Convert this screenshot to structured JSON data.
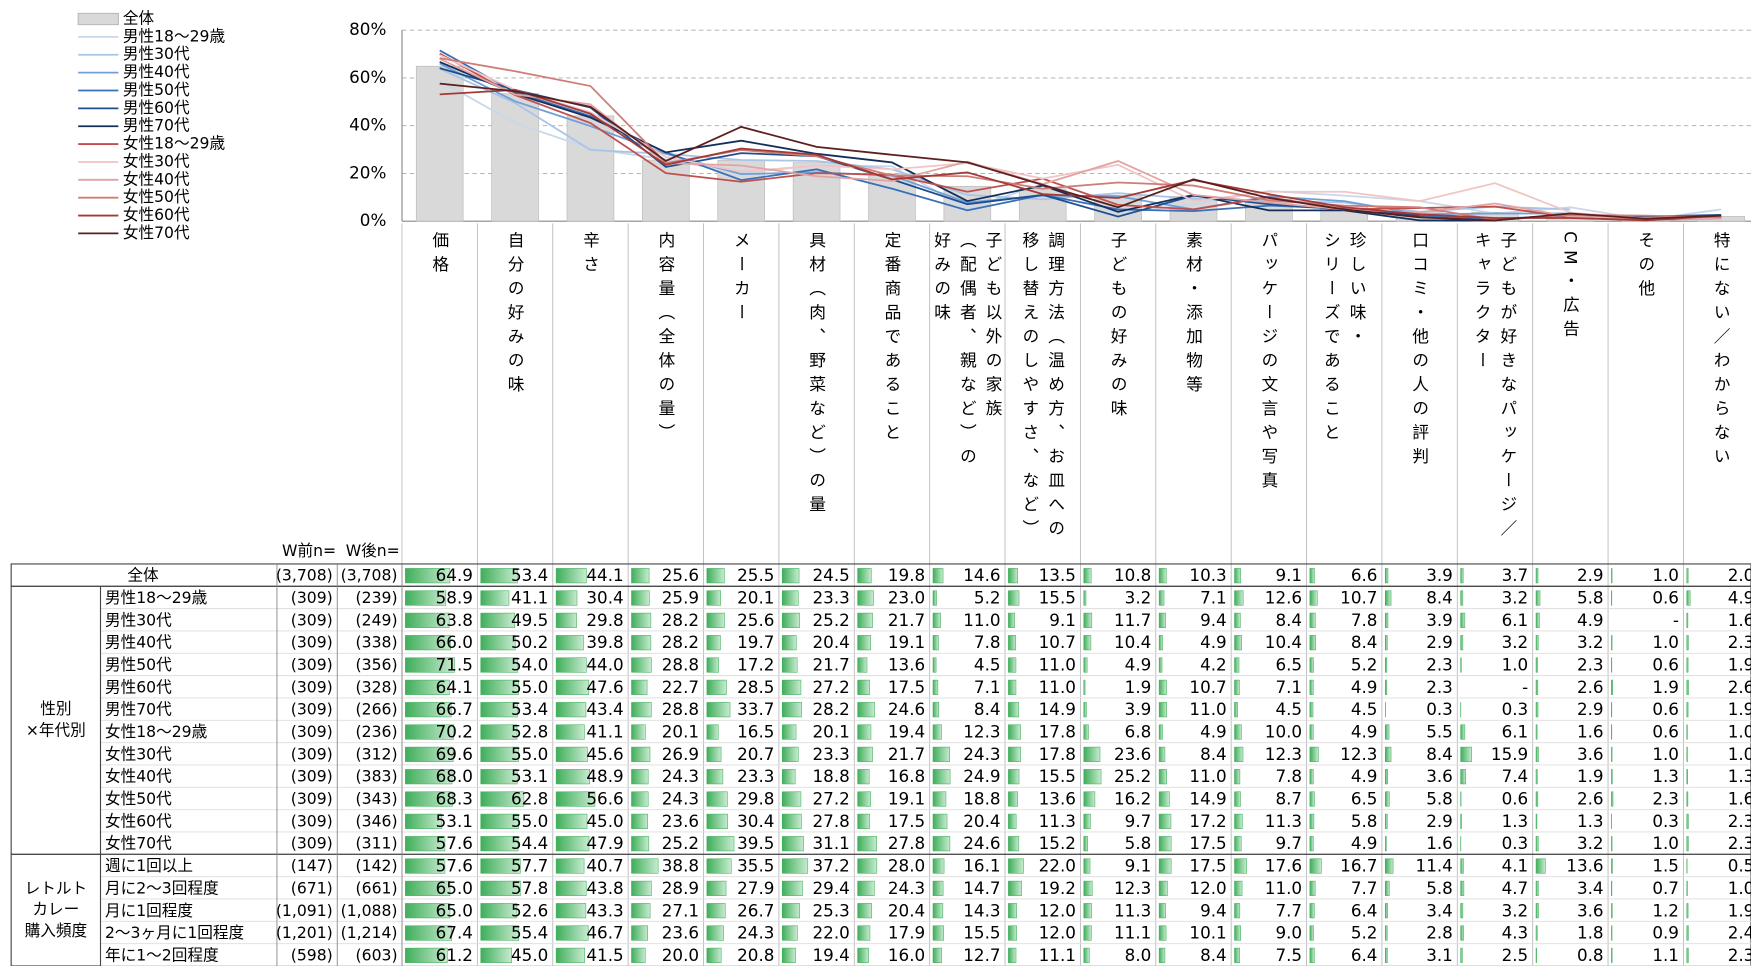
{
  "chart": {
    "type": "bar_line",
    "ylim": [
      0,
      80
    ],
    "yticks": [
      {
        "value": 0,
        "label": "0%"
      },
      {
        "value": 20,
        "label": "20%"
      },
      {
        "value": 40,
        "label": "40%"
      },
      {
        "value": 60,
        "label": "60%"
      },
      {
        "value": 80,
        "label": "80%"
      }
    ],
    "grid": true,
    "bar_color": "#d9d9d9",
    "line_colors": [
      "#c9d7ea",
      "#a9c4e4",
      "#6f9fd8",
      "#3b6fb6",
      "#1f4e8c",
      "#14305a",
      "#c0504d",
      "#f2c4c4",
      "#e3a3a3",
      "#cf7d78",
      "#a33a36",
      "#5c1f1f"
    ]
  },
  "table": {
    "n_headers": [
      "W前n=",
      "W後n="
    ],
    "columns": [
      [
        "価格"
      ],
      [
        "自分の好みの味"
      ],
      [
        "辛さ"
      ],
      [
        "内容量（全体の量）"
      ],
      [
        "メーカー"
      ],
      [
        "具材（肉、野菜など）の量"
      ],
      [
        "定番商品であること"
      ],
      [
        "子ども以外の家族",
        "（配偶者、親など）の",
        "好みの味"
      ],
      [
        "調理方法（温め方、お皿への",
        "移し替えのしやすさ、など）"
      ],
      [
        "子どもの好みの味"
      ],
      [
        "素材・添加物等"
      ],
      [
        "パッケージの文言や写真"
      ],
      [
        "珍しい味・",
        "シリーズであること"
      ],
      [
        "口コミ・他の人の評判"
      ],
      [
        "子どもが好きなパッケージ／",
        "キャラクター"
      ],
      [
        "CM・広告"
      ],
      [
        "その他"
      ],
      [
        "特にない／わからない"
      ]
    ],
    "total": {
      "label": "全体",
      "n": [
        "(3,708)",
        "(3,708)"
      ],
      "values": [
        "64.9",
        "53.4",
        "44.1",
        "25.6",
        "25.5",
        "24.5",
        "19.8",
        "14.6",
        "13.5",
        "10.8",
        "10.3",
        "9.1",
        "6.6",
        "3.9",
        "3.7",
        "2.9",
        "1.0",
        "2.0"
      ]
    },
    "groups": [
      {
        "label": [
          "性別",
          "×年代別"
        ],
        "rows": [
          {
            "label": "男性18～29歳",
            "n": [
              "(309)",
              "(239)"
            ],
            "values": [
              "58.9",
              "41.1",
              "30.4",
              "25.9",
              "20.1",
              "23.3",
              "23.0",
              "5.2",
              "15.5",
              "3.2",
              "7.1",
              "12.6",
              "10.7",
              "8.4",
              "3.2",
              "5.8",
              "0.6",
              "4.9"
            ]
          },
          {
            "label": "男性30代",
            "n": [
              "(309)",
              "(249)"
            ],
            "values": [
              "63.8",
              "49.5",
              "29.8",
              "28.2",
              "25.6",
              "25.2",
              "21.7",
              "11.0",
              "9.1",
              "11.7",
              "9.4",
              "8.4",
              "7.8",
              "3.9",
              "6.1",
              "4.9",
              "-",
              "1.6"
            ]
          },
          {
            "label": "男性40代",
            "n": [
              "(309)",
              "(338)"
            ],
            "values": [
              "66.0",
              "50.2",
              "39.8",
              "28.2",
              "19.7",
              "20.4",
              "19.1",
              "7.8",
              "10.7",
              "10.4",
              "4.9",
              "10.4",
              "8.4",
              "2.9",
              "3.2",
              "3.2",
              "1.0",
              "2.3"
            ]
          },
          {
            "label": "男性50代",
            "n": [
              "(309)",
              "(356)"
            ],
            "values": [
              "71.5",
              "54.0",
              "44.0",
              "28.8",
              "17.2",
              "21.7",
              "13.6",
              "4.5",
              "11.0",
              "4.9",
              "4.2",
              "6.5",
              "5.2",
              "2.3",
              "1.0",
              "2.3",
              "0.6",
              "1.9"
            ]
          },
          {
            "label": "男性60代",
            "n": [
              "(309)",
              "(328)"
            ],
            "values": [
              "64.1",
              "55.0",
              "47.6",
              "22.7",
              "28.5",
              "27.2",
              "17.5",
              "7.1",
              "11.0",
              "1.9",
              "10.7",
              "7.1",
              "4.9",
              "2.3",
              "-",
              "2.6",
              "1.9",
              "2.6"
            ]
          },
          {
            "label": "男性70代",
            "n": [
              "(309)",
              "(266)"
            ],
            "values": [
              "66.7",
              "53.4",
              "43.4",
              "28.8",
              "33.7",
              "28.2",
              "24.6",
              "8.4",
              "14.9",
              "3.9",
              "11.0",
              "4.5",
              "4.5",
              "0.3",
              "0.3",
              "2.9",
              "0.6",
              "1.9"
            ]
          },
          {
            "label": "女性18～29歳",
            "n": [
              "(309)",
              "(236)"
            ],
            "values": [
              "70.2",
              "52.8",
              "41.1",
              "20.1",
              "16.5",
              "20.1",
              "19.4",
              "12.3",
              "17.8",
              "6.8",
              "4.9",
              "10.0",
              "4.9",
              "5.5",
              "6.1",
              "1.6",
              "0.6",
              "1.0"
            ]
          },
          {
            "label": "女性30代",
            "n": [
              "(309)",
              "(312)"
            ],
            "values": [
              "69.6",
              "55.0",
              "45.6",
              "26.9",
              "20.7",
              "23.3",
              "21.7",
              "24.3",
              "17.8",
              "23.6",
              "8.4",
              "12.3",
              "12.3",
              "8.4",
              "15.9",
              "3.6",
              "1.0",
              "1.0"
            ]
          },
          {
            "label": "女性40代",
            "n": [
              "(309)",
              "(383)"
            ],
            "values": [
              "68.0",
              "53.1",
              "48.9",
              "24.3",
              "23.3",
              "18.8",
              "16.8",
              "24.9",
              "15.5",
              "25.2",
              "11.0",
              "7.8",
              "4.9",
              "3.6",
              "7.4",
              "1.9",
              "1.3",
              "1.3"
            ]
          },
          {
            "label": "女性50代",
            "n": [
              "(309)",
              "(343)"
            ],
            "values": [
              "68.3",
              "62.8",
              "56.6",
              "24.3",
              "29.8",
              "27.2",
              "19.1",
              "18.8",
              "13.6",
              "16.2",
              "14.9",
              "8.7",
              "6.5",
              "5.8",
              "0.6",
              "2.6",
              "2.3",
              "1.6"
            ]
          },
          {
            "label": "女性60代",
            "n": [
              "(309)",
              "(346)"
            ],
            "values": [
              "53.1",
              "55.0",
              "45.0",
              "23.6",
              "30.4",
              "27.8",
              "17.5",
              "20.4",
              "11.3",
              "9.7",
              "17.2",
              "11.3",
              "5.8",
              "2.9",
              "1.3",
              "1.3",
              "0.3",
              "2.3"
            ]
          },
          {
            "label": "女性70代",
            "n": [
              "(309)",
              "(311)"
            ],
            "values": [
              "57.6",
              "54.4",
              "47.9",
              "25.2",
              "39.5",
              "31.1",
              "27.8",
              "24.6",
              "15.2",
              "5.8",
              "17.5",
              "9.7",
              "4.9",
              "1.6",
              "0.3",
              "3.2",
              "1.0",
              "2.3"
            ]
          }
        ]
      },
      {
        "label": [
          "レトルト",
          "カレー",
          "購入頻度"
        ],
        "rows": [
          {
            "label": "週に1回以上",
            "n": [
              "(147)",
              "(142)"
            ],
            "values": [
              "57.6",
              "57.7",
              "40.7",
              "38.8",
              "35.5",
              "37.2",
              "28.0",
              "16.1",
              "22.0",
              "9.1",
              "17.5",
              "17.6",
              "16.7",
              "11.4",
              "4.1",
              "13.6",
              "1.5",
              "0.5"
            ]
          },
          {
            "label": "月に2～3回程度",
            "n": [
              "(671)",
              "(661)"
            ],
            "values": [
              "65.0",
              "57.8",
              "43.8",
              "28.9",
              "27.9",
              "29.4",
              "24.3",
              "14.7",
              "19.2",
              "12.3",
              "12.0",
              "11.0",
              "7.7",
              "5.8",
              "4.7",
              "3.4",
              "0.7",
              "1.0"
            ]
          },
          {
            "label": "月に1回程度",
            "n": [
              "(1,091)",
              "(1,088)"
            ],
            "values": [
              "65.0",
              "52.6",
              "43.3",
              "27.1",
              "26.7",
              "25.3",
              "20.4",
              "14.3",
              "12.0",
              "11.3",
              "9.4",
              "7.7",
              "6.4",
              "3.4",
              "3.2",
              "3.6",
              "1.2",
              "1.9"
            ]
          },
          {
            "label": "2～3ヶ月に1回程度",
            "n": [
              "(1,201)",
              "(1,214)"
            ],
            "values": [
              "67.4",
              "55.4",
              "46.7",
              "23.6",
              "24.3",
              "22.0",
              "17.9",
              "15.5",
              "12.0",
              "11.1",
              "10.1",
              "9.0",
              "5.2",
              "2.8",
              "4.3",
              "1.8",
              "0.9",
              "2.4"
            ]
          },
          {
            "label": "年に1～2回程度",
            "n": [
              "(598)",
              "(603)"
            ],
            "values": [
              "61.2",
              "45.0",
              "41.5",
              "20.0",
              "20.8",
              "19.4",
              "16.0",
              "12.7",
              "11.1",
              "8.0",
              "8.4",
              "7.5",
              "6.4",
              "3.1",
              "2.5",
              "0.8",
              "1.1",
              "2.3"
            ]
          }
        ]
      }
    ]
  }
}
